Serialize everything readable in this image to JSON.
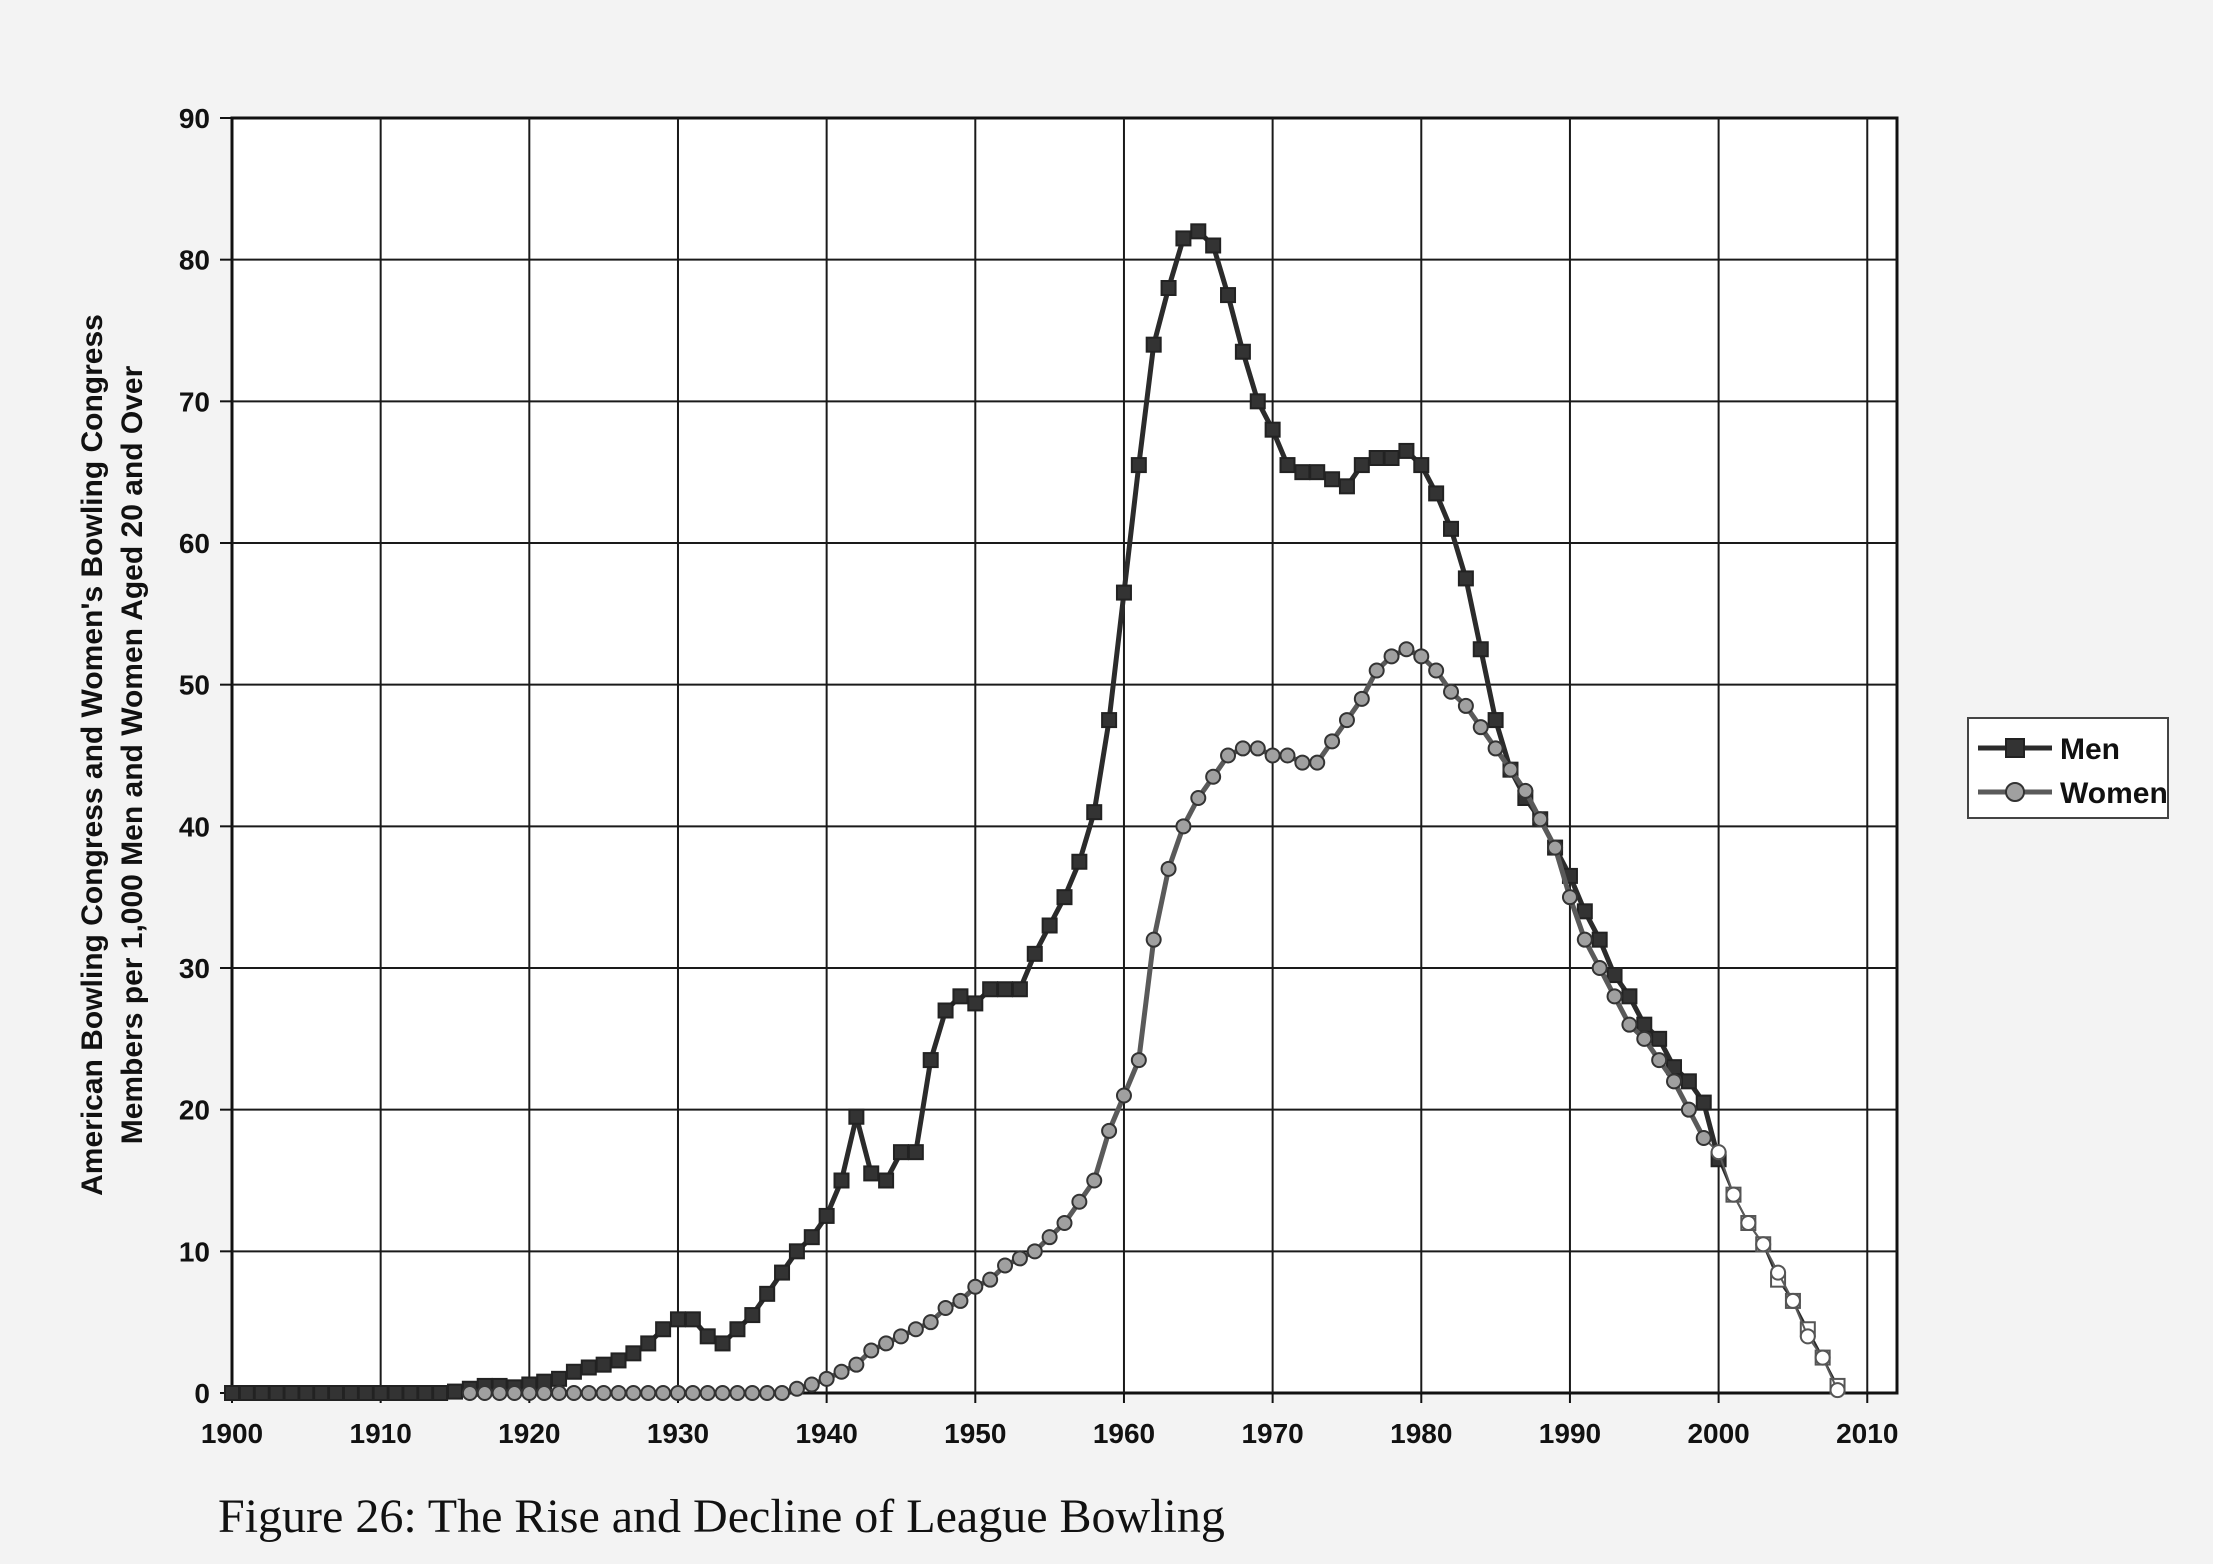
{
  "caption": "Figure 26: The Rise and Decline of League Bowling",
  "chart_data": {
    "type": "line",
    "title": "",
    "xlabel": "",
    "ylabel_lines": [
      "American Bowling Congress and Women's Bowling Congress",
      "Members per 1,000 Men and Women Aged 20 and Over"
    ],
    "xlim": [
      1900,
      2012
    ],
    "ylim": [
      0,
      90
    ],
    "x_ticks": [
      "1900",
      "1910",
      "1920",
      "1930",
      "1940",
      "1950",
      "1960",
      "1970",
      "1980",
      "1990",
      "2000",
      "2010"
    ],
    "y_ticks": [
      "0",
      "10",
      "20",
      "30",
      "40",
      "50",
      "60",
      "70",
      "80",
      "90"
    ],
    "grid": true,
    "legend_position": "right",
    "series": [
      {
        "name": "Men",
        "color": "#2b2b2b",
        "marker": "square",
        "points": [
          [
            1900,
            0
          ],
          [
            1901,
            0
          ],
          [
            1902,
            0
          ],
          [
            1903,
            0
          ],
          [
            1904,
            0
          ],
          [
            1905,
            0
          ],
          [
            1906,
            0
          ],
          [
            1907,
            0
          ],
          [
            1908,
            0
          ],
          [
            1909,
            0
          ],
          [
            1910,
            0
          ],
          [
            1911,
            0
          ],
          [
            1912,
            0
          ],
          [
            1913,
            0
          ],
          [
            1914,
            0
          ],
          [
            1915,
            0.1
          ],
          [
            1916,
            0.3
          ],
          [
            1917,
            0.5
          ],
          [
            1918,
            0.5
          ],
          [
            1919,
            0.4
          ],
          [
            1920,
            0.6
          ],
          [
            1921,
            0.8
          ],
          [
            1922,
            1
          ],
          [
            1923,
            1.5
          ],
          [
            1924,
            1.8
          ],
          [
            1925,
            2
          ],
          [
            1926,
            2.3
          ],
          [
            1927,
            2.8
          ],
          [
            1928,
            3.5
          ],
          [
            1929,
            4.5
          ],
          [
            1930,
            5.2
          ],
          [
            1931,
            5.2
          ],
          [
            1932,
            4
          ],
          [
            1933,
            3.5
          ],
          [
            1934,
            4.5
          ],
          [
            1935,
            5.5
          ],
          [
            1936,
            7
          ],
          [
            1937,
            8.5
          ],
          [
            1938,
            10
          ],
          [
            1939,
            11
          ],
          [
            1940,
            12.5
          ],
          [
            1941,
            15
          ],
          [
            1942,
            19.5
          ],
          [
            1943,
            15.5
          ],
          [
            1944,
            15
          ],
          [
            1945,
            17
          ],
          [
            1946,
            17
          ],
          [
            1947,
            23.5
          ],
          [
            1948,
            27
          ],
          [
            1949,
            28
          ],
          [
            1950,
            27.5
          ],
          [
            1951,
            28.5
          ],
          [
            1952,
            28.5
          ],
          [
            1953,
            28.5
          ],
          [
            1954,
            31
          ],
          [
            1955,
            33
          ],
          [
            1956,
            35
          ],
          [
            1957,
            37.5
          ],
          [
            1958,
            41
          ],
          [
            1959,
            47.5
          ],
          [
            1960,
            56.5
          ],
          [
            1961,
            65.5
          ],
          [
            1962,
            74
          ],
          [
            1963,
            78
          ],
          [
            1964,
            81.5
          ],
          [
            1965,
            82
          ],
          [
            1966,
            81
          ],
          [
            1967,
            77.5
          ],
          [
            1968,
            73.5
          ],
          [
            1969,
            70
          ],
          [
            1970,
            68
          ],
          [
            1971,
            65.5
          ],
          [
            1972,
            65
          ],
          [
            1973,
            65
          ],
          [
            1974,
            64.5
          ],
          [
            1975,
            64
          ],
          [
            1976,
            65.5
          ],
          [
            1977,
            66
          ],
          [
            1978,
            66
          ],
          [
            1979,
            66.5
          ],
          [
            1980,
            65.5
          ],
          [
            1981,
            63.5
          ],
          [
            1982,
            61
          ],
          [
            1983,
            57.5
          ],
          [
            1984,
            52.5
          ],
          [
            1985,
            47.5
          ],
          [
            1986,
            44
          ],
          [
            1987,
            42
          ],
          [
            1988,
            40.5
          ],
          [
            1989,
            38.5
          ],
          [
            1990,
            36.5
          ],
          [
            1991,
            34
          ],
          [
            1992,
            32
          ],
          [
            1993,
            29.5
          ],
          [
            1994,
            28
          ],
          [
            1995,
            26
          ],
          [
            1996,
            25
          ],
          [
            1997,
            23
          ],
          [
            1998,
            22
          ],
          [
            1999,
            20.5
          ],
          [
            2000,
            16.5
          ],
          [
            2001,
            14
          ],
          [
            2002,
            12
          ],
          [
            2003,
            10.5
          ],
          [
            2004,
            8
          ],
          [
            2005,
            6.5
          ],
          [
            2006,
            4.5
          ],
          [
            2007,
            2.5
          ],
          [
            2008,
            0.5
          ]
        ],
        "projected_from": 2000
      },
      {
        "name": "Women",
        "color": "#5a5a5a",
        "marker": "circle",
        "points": [
          [
            1916,
            0
          ],
          [
            1917,
            0
          ],
          [
            1918,
            0
          ],
          [
            1919,
            0
          ],
          [
            1920,
            0
          ],
          [
            1921,
            0
          ],
          [
            1922,
            0
          ],
          [
            1923,
            0
          ],
          [
            1924,
            0
          ],
          [
            1925,
            0
          ],
          [
            1926,
            0
          ],
          [
            1927,
            0
          ],
          [
            1928,
            0
          ],
          [
            1929,
            0
          ],
          [
            1930,
            0
          ],
          [
            1931,
            0
          ],
          [
            1932,
            0
          ],
          [
            1933,
            0
          ],
          [
            1934,
            0
          ],
          [
            1935,
            0
          ],
          [
            1936,
            0
          ],
          [
            1937,
            0
          ],
          [
            1938,
            0.3
          ],
          [
            1939,
            0.6
          ],
          [
            1940,
            1
          ],
          [
            1941,
            1.5
          ],
          [
            1942,
            2
          ],
          [
            1943,
            3
          ],
          [
            1944,
            3.5
          ],
          [
            1945,
            4
          ],
          [
            1946,
            4.5
          ],
          [
            1947,
            5
          ],
          [
            1948,
            6
          ],
          [
            1949,
            6.5
          ],
          [
            1950,
            7.5
          ],
          [
            1951,
            8
          ],
          [
            1952,
            9
          ],
          [
            1953,
            9.5
          ],
          [
            1954,
            10
          ],
          [
            1955,
            11
          ],
          [
            1956,
            12
          ],
          [
            1957,
            13.5
          ],
          [
            1958,
            15
          ],
          [
            1959,
            18.5
          ],
          [
            1960,
            21
          ],
          [
            1961,
            23.5
          ],
          [
            1962,
            32
          ],
          [
            1963,
            37
          ],
          [
            1964,
            40
          ],
          [
            1965,
            42
          ],
          [
            1966,
            43.5
          ],
          [
            1967,
            45
          ],
          [
            1968,
            45.5
          ],
          [
            1969,
            45.5
          ],
          [
            1970,
            45
          ],
          [
            1971,
            45
          ],
          [
            1972,
            44.5
          ],
          [
            1973,
            44.5
          ],
          [
            1974,
            46
          ],
          [
            1975,
            47.5
          ],
          [
            1976,
            49
          ],
          [
            1977,
            51
          ],
          [
            1978,
            52
          ],
          [
            1979,
            52.5
          ],
          [
            1980,
            52
          ],
          [
            1981,
            51
          ],
          [
            1982,
            49.5
          ],
          [
            1983,
            48.5
          ],
          [
            1984,
            47
          ],
          [
            1985,
            45.5
          ],
          [
            1986,
            44
          ],
          [
            1987,
            42.5
          ],
          [
            1988,
            40.5
          ],
          [
            1989,
            38.5
          ],
          [
            1990,
            35
          ],
          [
            1991,
            32
          ],
          [
            1992,
            30
          ],
          [
            1993,
            28
          ],
          [
            1994,
            26
          ],
          [
            1995,
            25
          ],
          [
            1996,
            23.5
          ],
          [
            1997,
            22
          ],
          [
            1998,
            20
          ],
          [
            1999,
            18
          ],
          [
            2000,
            17
          ],
          [
            2001,
            14
          ],
          [
            2002,
            12
          ],
          [
            2003,
            10.5
          ],
          [
            2004,
            8.5
          ],
          [
            2005,
            6.5
          ],
          [
            2006,
            4
          ],
          [
            2007,
            2.5
          ],
          [
            2008,
            0.2
          ]
        ],
        "projected_from": 1999
      }
    ]
  }
}
